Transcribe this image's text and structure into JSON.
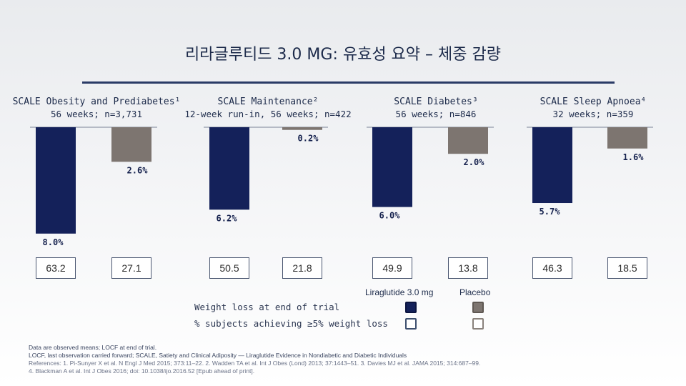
{
  "title": "리라글루티드 3.0 MG: 유효성 요약 – 체중 감량",
  "studies": [
    {
      "name": "SCALE Obesity and Prediabetes¹",
      "detail": "56 weeks; n=3,731"
    },
    {
      "name": "SCALE Maintenance²",
      "detail": "12-week run-in, 56 weeks; n=422"
    },
    {
      "name": "SCALE Diabetes³",
      "detail": "56 weeks; n=846"
    },
    {
      "name": "SCALE Sleep Apnoea⁴",
      "detail": "32 weeks; n=359"
    }
  ],
  "chart_data": {
    "type": "bar",
    "orientation": "downward",
    "categories": [
      "SCALE Obesity and Prediabetes",
      "SCALE Maintenance",
      "SCALE Diabetes",
      "SCALE Sleep Apnoea"
    ],
    "series": [
      {
        "name": "Liraglutide 3.0 mg",
        "color": "#14215a",
        "values": [
          8.0,
          6.2,
          6.0,
          5.7
        ],
        "labels": [
          "8.0%",
          "6.2%",
          "6.0%",
          "5.7%"
        ],
        "responders": [
          "63.2",
          "50.5",
          "49.9",
          "46.3"
        ]
      },
      {
        "name": "Placebo",
        "color": "#7d7570",
        "values": [
          2.6,
          0.2,
          2.0,
          1.6
        ],
        "labels": [
          "2.6%",
          "0.2%",
          "2.0%",
          "1.6%"
        ],
        "responders": [
          "27.1",
          "21.8",
          "13.8",
          "18.5"
        ]
      }
    ]
  },
  "legend": {
    "col_liraglutide": "Liraglutide 3.0 mg",
    "col_placebo": "Placebo",
    "row_weight_loss": "Weight loss at end of trial",
    "row_responders": "% subjects achieving ≥5% weight loss"
  },
  "footnotes": {
    "line1": "Data are observed means; LOCF at end of trial.",
    "line2": "LOCF, last observation carried forward; SCALE, Satiety and Clinical Adiposity — Liraglutide Evidence in Nondiabetic and Diabetic Individuals",
    "line3": "References: 1. Pi-Sunyer X et al. N Engl J Med 2015; 373:11–22. 2. Wadden TA et al. Int J Obes (Lond) 2013; 37:1443–51. 3. Davies MJ et al. JAMA 2015; 314:687–99.",
    "line4": "4. Blackman A et al. Int J Obes 2016; doi: 10.1038/ijo.2016.52 [Epub ahead of print]."
  }
}
